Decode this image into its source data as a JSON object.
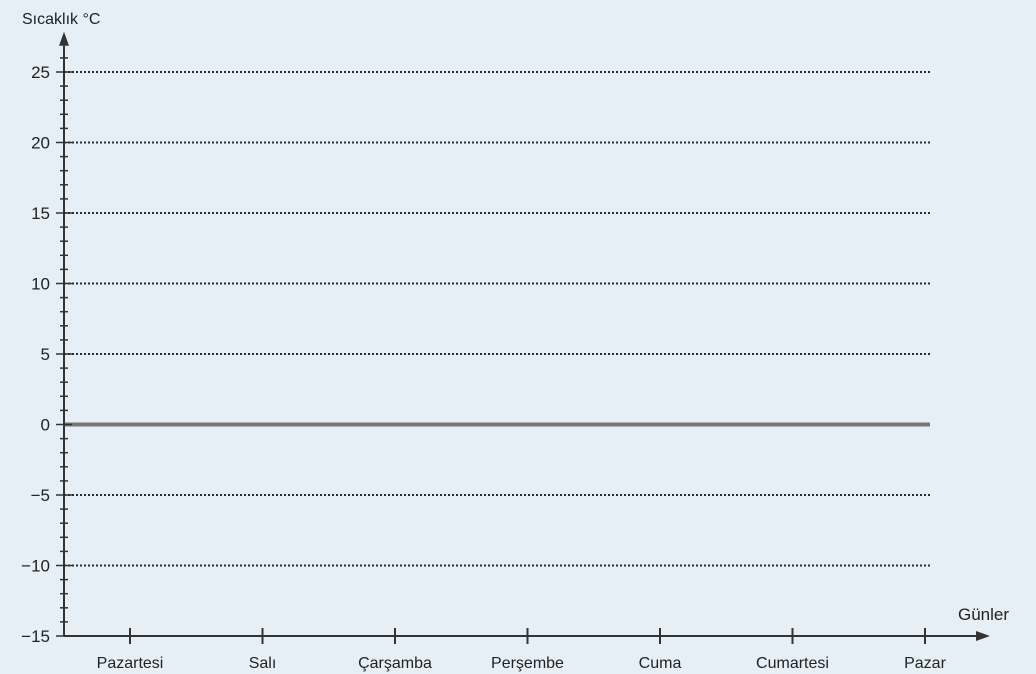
{
  "chart_data": {
    "type": "line",
    "title": "",
    "ylabel": "Sıcaklık °C",
    "xlabel": "Günler",
    "categories": [
      "Pazartesi",
      "Salı",
      "Çarşamba",
      "Perşembe",
      "Cuma",
      "Cumartesi",
      "Pazar"
    ],
    "yticks": [
      -15,
      -10,
      -5,
      0,
      5,
      10,
      15,
      20,
      25
    ],
    "ylim": [
      -15,
      27
    ],
    "y_minor_step": 1,
    "gridlines": [
      -10,
      -5,
      5,
      10,
      15,
      20,
      25
    ],
    "gridline_style": "dotted",
    "zero_line": true,
    "series": [],
    "grid": true,
    "colors": {
      "background": "#e6eff5",
      "axis": "#333333",
      "grid": "#2b2b2b",
      "zero_line": "#777777",
      "text": "#222222"
    }
  }
}
